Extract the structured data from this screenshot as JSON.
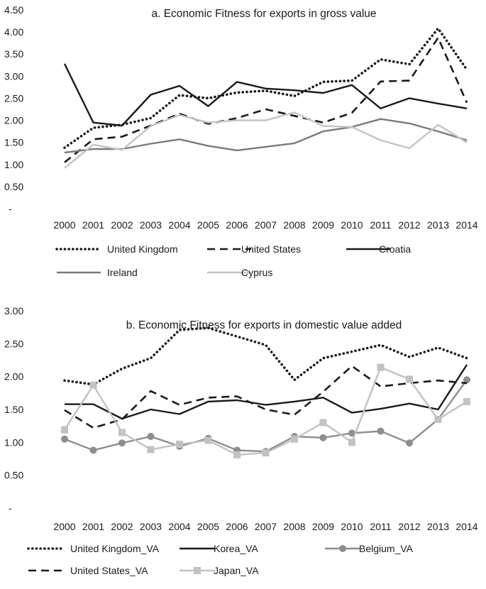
{
  "chart_data": [
    {
      "type": "line",
      "title": "a. Economic Fitness for exports in gross value",
      "xlabel": "",
      "ylabel": "",
      "categories": [
        "2000",
        "2001",
        "2002",
        "2003",
        "2004",
        "2005",
        "2006",
        "2007",
        "2008",
        "2009",
        "2010",
        "2011",
        "2012",
        "2013",
        "2014"
      ],
      "ylim": [
        0,
        4.5
      ],
      "yticks": [
        "-",
        "0.50",
        "1.00",
        "1.50",
        "2.00",
        "2.50",
        "3.00",
        "3.50",
        "4.00",
        "4.50"
      ],
      "grid": false,
      "legend_position": "bottom",
      "series": [
        {
          "name": "United Kingdom",
          "values": [
            1.38,
            1.83,
            1.9,
            2.05,
            2.57,
            2.5,
            2.63,
            2.67,
            2.55,
            2.87,
            2.9,
            3.38,
            3.27,
            4.08,
            3.15
          ],
          "color": "#1a1a1a",
          "style": "dotted"
        },
        {
          "name": "United States",
          "values": [
            1.05,
            1.57,
            1.63,
            1.88,
            2.15,
            1.92,
            2.05,
            2.25,
            2.1,
            1.95,
            2.17,
            2.88,
            2.9,
            3.87,
            2.4
          ],
          "color": "#1a1a1a",
          "style": "dashed"
        },
        {
          "name": "Croatia",
          "values": [
            3.28,
            1.95,
            1.88,
            2.58,
            2.78,
            2.32,
            2.87,
            2.72,
            2.68,
            2.62,
            2.8,
            2.27,
            2.5,
            2.38,
            2.27
          ],
          "color": "#1a1a1a",
          "style": "solid"
        },
        {
          "name": "Ireland",
          "values": [
            1.27,
            1.35,
            1.35,
            1.47,
            1.57,
            1.42,
            1.32,
            1.4,
            1.48,
            1.75,
            1.85,
            2.03,
            1.93,
            1.75,
            1.55
          ],
          "color": "#7a7a7a",
          "style": "solid"
        },
        {
          "name": "Cyprus",
          "values": [
            0.92,
            1.45,
            1.33,
            1.87,
            2.12,
            1.95,
            2.0,
            2.0,
            2.18,
            1.87,
            1.85,
            1.55,
            1.37,
            1.9,
            1.5
          ],
          "color": "#c4c4c4",
          "style": "solid"
        }
      ]
    },
    {
      "type": "line",
      "title": "b. Economic Fitness for exports in domestic value added",
      "xlabel": "",
      "ylabel": "",
      "categories": [
        "2000",
        "2001",
        "2002",
        "2003",
        "2004",
        "2005",
        "2006",
        "2007",
        "2008",
        "2009",
        "2010",
        "2011",
        "2012",
        "2013",
        "2014"
      ],
      "ylim": [
        0,
        3.0
      ],
      "yticks": [
        "-",
        "0.50",
        "1.00",
        "1.50",
        "2.00",
        "2.50",
        "3.00"
      ],
      "grid": false,
      "legend_position": "bottom",
      "series": [
        {
          "name": "United Kingdom_VA",
          "values": [
            1.94,
            1.88,
            2.12,
            2.28,
            2.71,
            2.74,
            2.61,
            2.48,
            1.95,
            2.28,
            2.38,
            2.48,
            2.3,
            2.44,
            2.28
          ],
          "color": "#1a1a1a",
          "style": "dotted"
        },
        {
          "name": "Korea_VA",
          "values": [
            1.58,
            1.58,
            1.36,
            1.5,
            1.43,
            1.62,
            1.64,
            1.57,
            1.62,
            1.68,
            1.45,
            1.51,
            1.59,
            1.5,
            2.18
          ],
          "color": "#1a1a1a",
          "style": "solid"
        },
        {
          "name": "Belgium_VA",
          "values": [
            1.05,
            0.88,
            0.99,
            1.09,
            0.94,
            1.06,
            0.88,
            0.86,
            1.09,
            1.07,
            1.14,
            1.17,
            0.99,
            1.35,
            1.95
          ],
          "color": "#8e8e8e",
          "style": "solid",
          "marker": "circle"
        },
        {
          "name": "United States_VA",
          "values": [
            1.49,
            1.22,
            1.35,
            1.78,
            1.57,
            1.68,
            1.7,
            1.5,
            1.42,
            1.77,
            2.16,
            1.85,
            1.9,
            1.94,
            1.9
          ],
          "color": "#1a1a1a",
          "style": "dashed"
        },
        {
          "name": "Japan_VA",
          "values": [
            1.19,
            1.87,
            1.15,
            0.89,
            0.97,
            1.03,
            0.81,
            0.84,
            1.05,
            1.3,
            1.0,
            2.14,
            1.96,
            1.35,
            1.62
          ],
          "color": "#c2c2c2",
          "style": "solid",
          "marker": "square"
        }
      ]
    }
  ]
}
